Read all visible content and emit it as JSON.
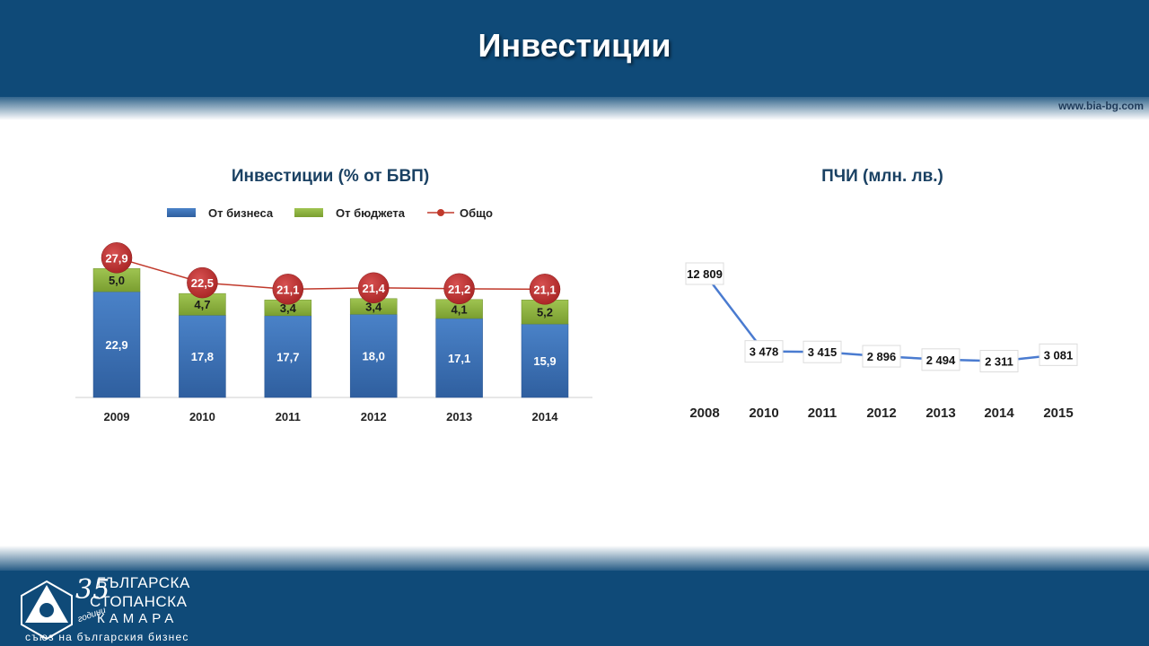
{
  "slide": {
    "title": "Инвестиции",
    "website": "www.bia-bg.com"
  },
  "colors": {
    "header": "#0f4a78",
    "business": "#3a6fb5",
    "budget": "#8cb03c",
    "total": "#c0392b",
    "fdi_line": "#4a7bd0"
  },
  "logo": {
    "icon": "bia-triangle-logo-icon",
    "anniversary_number": "35",
    "anniversary_word": "години",
    "line1": "БЪЛГАРСКА",
    "line2": "СТОПАНСКА",
    "line3": "КАМАРА",
    "tagline": "съюз на българския бизнес"
  },
  "chart_data": [
    {
      "type": "bar",
      "stacked": true,
      "title": "Инвестиции (% от БВП)",
      "categories": [
        "2009",
        "2010",
        "2011",
        "2012",
        "2013",
        "2014"
      ],
      "series": [
        {
          "name": "От бизнеса",
          "kind": "bar",
          "values": [
            22.9,
            17.8,
            17.7,
            18.0,
            17.1,
            15.9
          ],
          "labels": [
            "22,9",
            "17,8",
            "17,7",
            "18,0",
            "17,1",
            "15,9"
          ]
        },
        {
          "name": "От бюджета",
          "kind": "bar",
          "values": [
            5.0,
            4.7,
            3.4,
            3.4,
            4.1,
            5.2
          ],
          "labels": [
            "5,0",
            "4,7",
            "3,4",
            "3,4",
            "4,1",
            "5,2"
          ]
        },
        {
          "name": "Общо",
          "kind": "line",
          "values": [
            27.9,
            22.5,
            21.1,
            21.4,
            21.2,
            21.1
          ],
          "labels": [
            "27,9",
            "22,5",
            "21,1",
            "21,4",
            "21,2",
            "21,1"
          ]
        }
      ],
      "ylim": [
        0,
        30
      ],
      "grid": false,
      "legend": "top"
    },
    {
      "type": "line",
      "title": "ПЧИ (млн. лв.)",
      "categories": [
        "2008",
        "2010",
        "2011",
        "2012",
        "2013",
        "2014",
        "2015"
      ],
      "values": [
        12809,
        3478,
        3415,
        2896,
        2494,
        2311,
        3081
      ],
      "labels": [
        "12 809",
        "3 478",
        "3 415",
        "2 896",
        "2 494",
        "2 311",
        "3 081"
      ],
      "grid": false,
      "legend": "none"
    }
  ]
}
